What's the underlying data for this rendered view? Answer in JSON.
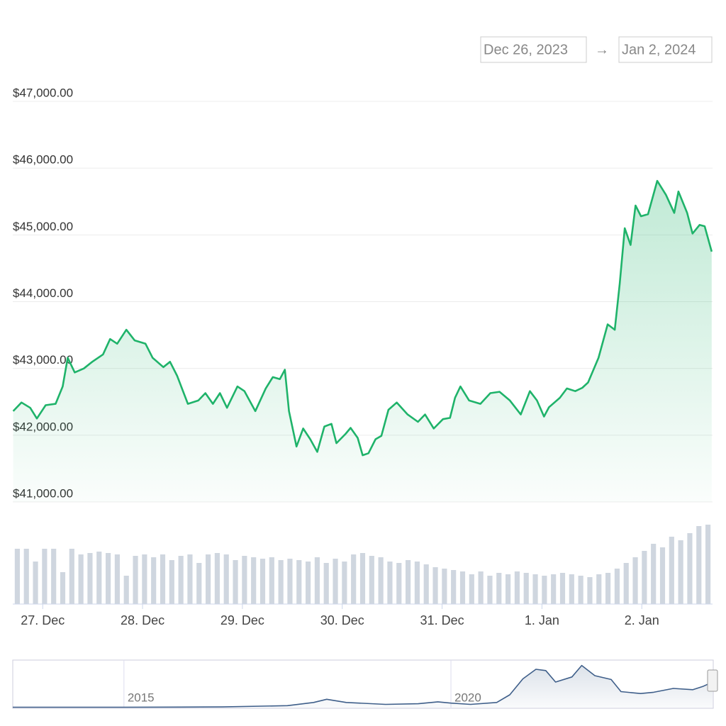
{
  "date_range": {
    "start": "Dec 26, 2023",
    "arrow": "→",
    "end": "Jan 2, 2024"
  },
  "chart_data": [
    {
      "type": "line",
      "area": true,
      "grid": true,
      "x": [
        16.9,
        18.9,
        21.0,
        22.6,
        24.7,
        27.1,
        28.8,
        30.0,
        31.7,
        33.9,
        35.9,
        38.5,
        40.2,
        41.9,
        44.1,
        46.1,
        48.7,
        50.4,
        53.0,
        54.6,
        56.3,
        58.9,
        61.4,
        63.1,
        64.9,
        66.6,
        68.3,
        70.8,
        72.5,
        75.1,
        77.6,
        79.3,
        81.0,
        82.2,
        83.2,
        85.0,
        86.6,
        88.3,
        90.0,
        91.7,
        93.4,
        94.6,
        96.8,
        98.0,
        99.7,
        100.9,
        102.3,
        104.0,
        105.4,
        107.1,
        109.1,
        111.7,
        114.2,
        115.9,
        118.0,
        120.2,
        121.9,
        123.1,
        124.4,
        126.5,
        129.2,
        131.6,
        133.8,
        136.3,
        138.9,
        141.1,
        142.8,
        144.5,
        145.7,
        148.3,
        150.0,
        152.0,
        153.7,
        155.1,
        157.6,
        159.8,
        161.5,
        162.7,
        163.9,
        165.3,
        166.5,
        167.8,
        169.5,
        171.7,
        173.8,
        175.8,
        176.8,
        178.9,
        180.2,
        181.9,
        183.1,
        184.8
      ],
      "series": [
        {
          "color": "#1fb36a",
          "values": [
            42360,
            42490,
            42410,
            42250,
            42450,
            42470,
            42730,
            43160,
            42940,
            43000,
            43100,
            43210,
            43440,
            43370,
            43580,
            43420,
            43370,
            43160,
            43020,
            43100,
            42890,
            42470,
            42520,
            42630,
            42470,
            42630,
            42410,
            42730,
            42660,
            42360,
            42700,
            42870,
            42840,
            42980,
            42360,
            41830,
            42100,
            41940,
            41750,
            42130,
            42170,
            41880,
            42020,
            42110,
            41960,
            41700,
            41730,
            41940,
            41990,
            42380,
            42490,
            42310,
            42200,
            42310,
            42100,
            42240,
            42260,
            42560,
            42730,
            42520,
            42470,
            42630,
            42650,
            42520,
            42310,
            42660,
            42520,
            42280,
            42420,
            42560,
            42700,
            42660,
            42710,
            42790,
            43160,
            43660,
            43580,
            44270,
            45100,
            44850,
            45440,
            45280,
            45310,
            45810,
            45600,
            45330,
            45650,
            45330,
            45020,
            45150,
            45130,
            44750
          ]
        }
      ],
      "xlim": [
        16.8,
        185
      ],
      "xticks": [
        {
          "value": 24,
          "label": "27. Dec"
        },
        {
          "value": 48,
          "label": "28. Dec"
        },
        {
          "value": 72,
          "label": "29. Dec"
        },
        {
          "value": 96,
          "label": "30. Dec"
        },
        {
          "value": 120,
          "label": "31. Dec"
        },
        {
          "value": 144,
          "label": "1. Jan"
        },
        {
          "value": 168,
          "label": "2. Jan"
        }
      ],
      "ylim": [
        41000,
        47000
      ],
      "yticks": [
        {
          "value": 41000,
          "label": "$41,000.00"
        },
        {
          "value": 42000,
          "label": "$42,000.00"
        },
        {
          "value": 43000,
          "label": "$43,000.00"
        },
        {
          "value": 44000,
          "label": "$44,000.00"
        },
        {
          "value": 45000,
          "label": "$45,000.00"
        },
        {
          "value": 46000,
          "label": "$46,000.00"
        },
        {
          "value": 47000,
          "label": "$47,000.00"
        }
      ]
    },
    {
      "type": "bar",
      "color": "#cfd6df",
      "ylim": [
        0,
        120
      ],
      "values": [
        78,
        78,
        60,
        78,
        78,
        45,
        78,
        70,
        72,
        74,
        72,
        70,
        40,
        68,
        70,
        66,
        70,
        62,
        68,
        70,
        58,
        70,
        72,
        70,
        62,
        68,
        66,
        64,
        66,
        62,
        64,
        62,
        60,
        66,
        58,
        64,
        60,
        70,
        72,
        68,
        66,
        60,
        58,
        62,
        60,
        56,
        52,
        50,
        48,
        46,
        42,
        46,
        40,
        44,
        42,
        46,
        44,
        42,
        40,
        42,
        44,
        42,
        40,
        38,
        42,
        44,
        50,
        58,
        66,
        75,
        85,
        80,
        95,
        90,
        100,
        110,
        112
      ]
    },
    {
      "type": "line",
      "area": true,
      "x": [
        2013.3,
        2015,
        2016.5,
        2017.5,
        2017.9,
        2018.1,
        2018.4,
        2019,
        2019.5,
        2019.8,
        2020,
        2020.3,
        2020.7,
        2020.9,
        2021.1,
        2021.3,
        2021.45,
        2021.6,
        2021.85,
        2022.0,
        2022.2,
        2022.45,
        2022.6,
        2022.9,
        2023.1,
        2023.4,
        2023.7,
        2023.85,
        2024
      ],
      "series": [
        {
          "color": "#3f5f8a",
          "values": [
            0.5,
            0.5,
            1,
            3,
            8,
            13,
            8,
            5,
            6,
            9,
            7,
            5,
            8,
            20,
            45,
            60,
            58,
            40,
            48,
            66,
            50,
            44,
            25,
            22,
            24,
            30,
            28,
            33,
            40
          ]
        }
      ],
      "xlim": [
        2013.3,
        2024
      ],
      "ylim": [
        0,
        70
      ],
      "xticks": [
        2015,
        2020
      ],
      "grid": true
    }
  ]
}
